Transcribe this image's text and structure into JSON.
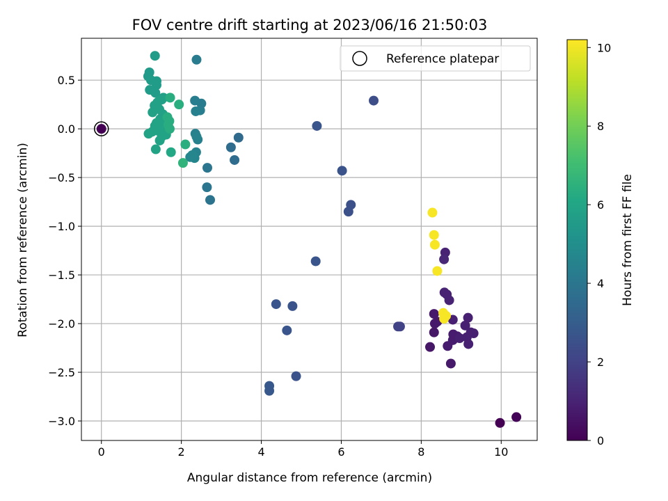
{
  "chart_data": {
    "type": "scatter",
    "title": "FOV centre drift starting at 2023/06/16 21:50:03",
    "xlabel": "Angular distance from reference (arcmin)",
    "ylabel": "Rotation from reference (arcmin)",
    "xlim": [
      -0.5,
      10.9
    ],
    "ylim": [
      -3.2,
      0.93
    ],
    "x_ticks": [
      0,
      2,
      4,
      6,
      8,
      10
    ],
    "x_tick_labels": [
      "0",
      "2",
      "4",
      "6",
      "8",
      "10"
    ],
    "y_ticks": [
      0.5,
      0.0,
      -0.5,
      -1.0,
      -1.5,
      -2.0,
      -2.5,
      -3.0
    ],
    "y_tick_labels": [
      "0.5",
      "0.0",
      "−0.5",
      "−1.0",
      "−1.5",
      "−2.0",
      "−2.5",
      "−3.0"
    ],
    "grid": true,
    "legend": {
      "position": "top-right",
      "entries": [
        "Reference platepar"
      ]
    },
    "colorbar": {
      "label": "Hours from first FF file",
      "colormap": "viridis",
      "range": [
        0,
        10.2
      ],
      "ticks": [
        0,
        2,
        4,
        6,
        8,
        10
      ],
      "tick_labels": [
        "0",
        "2",
        "4",
        "6",
        "8",
        "10"
      ]
    },
    "reference_point": {
      "x": 0,
      "y": 0,
      "c": 0
    },
    "points": [
      {
        "x": 9.97,
        "y": -3.02,
        "c": 0.0
      },
      {
        "x": 10.38,
        "y": -2.96,
        "c": 0.1
      },
      {
        "x": 8.22,
        "y": -2.24,
        "c": 0.6
      },
      {
        "x": 8.32,
        "y": -2.09,
        "c": 0.6
      },
      {
        "x": 8.34,
        "y": -2.0,
        "c": 0.7
      },
      {
        "x": 8.32,
        "y": -1.9,
        "c": 0.7
      },
      {
        "x": 8.4,
        "y": -1.98,
        "c": 0.7
      },
      {
        "x": 8.66,
        "y": -2.23,
        "c": 0.8
      },
      {
        "x": 8.74,
        "y": -2.41,
        "c": 0.7
      },
      {
        "x": 8.79,
        "y": -2.17,
        "c": 0.8
      },
      {
        "x": 8.8,
        "y": -2.11,
        "c": 0.8
      },
      {
        "x": 8.84,
        "y": -2.14,
        "c": 0.8
      },
      {
        "x": 8.9,
        "y": -2.13,
        "c": 0.8
      },
      {
        "x": 8.96,
        "y": -2.15,
        "c": 0.9
      },
      {
        "x": 8.79,
        "y": -1.96,
        "c": 0.9
      },
      {
        "x": 9.1,
        "y": -2.02,
        "c": 0.9
      },
      {
        "x": 9.17,
        "y": -1.94,
        "c": 0.9
      },
      {
        "x": 9.18,
        "y": -2.21,
        "c": 0.9
      },
      {
        "x": 9.24,
        "y": -2.09,
        "c": 0.9
      },
      {
        "x": 9.31,
        "y": -2.1,
        "c": 0.9
      },
      {
        "x": 9.14,
        "y": -2.14,
        "c": 0.9
      },
      {
        "x": 8.64,
        "y": -1.7,
        "c": 1.0
      },
      {
        "x": 8.58,
        "y": -1.68,
        "c": 1.0
      },
      {
        "x": 8.7,
        "y": -1.76,
        "c": 1.0
      },
      {
        "x": 8.6,
        "y": -1.27,
        "c": 1.0
      },
      {
        "x": 8.57,
        "y": -1.34,
        "c": 1.1
      },
      {
        "x": 7.42,
        "y": -2.03,
        "c": 2.0
      },
      {
        "x": 7.47,
        "y": -2.03,
        "c": 2.0
      },
      {
        "x": 6.81,
        "y": 0.29,
        "c": 2.4
      },
      {
        "x": 6.24,
        "y": -0.78,
        "c": 2.5
      },
      {
        "x": 6.18,
        "y": -0.85,
        "c": 2.5
      },
      {
        "x": 6.02,
        "y": -0.43,
        "c": 2.6
      },
      {
        "x": 5.39,
        "y": 0.03,
        "c": 2.7
      },
      {
        "x": 5.36,
        "y": -1.36,
        "c": 2.7
      },
      {
        "x": 4.87,
        "y": -2.54,
        "c": 2.6
      },
      {
        "x": 4.78,
        "y": -1.82,
        "c": 2.6
      },
      {
        "x": 4.37,
        "y": -1.8,
        "c": 2.7
      },
      {
        "x": 4.64,
        "y": -2.07,
        "c": 2.7
      },
      {
        "x": 4.2,
        "y": -2.64,
        "c": 2.8
      },
      {
        "x": 4.2,
        "y": -2.69,
        "c": 2.8
      },
      {
        "x": 3.43,
        "y": -0.09,
        "c": 3.5
      },
      {
        "x": 3.24,
        "y": -0.19,
        "c": 3.6
      },
      {
        "x": 3.33,
        "y": -0.32,
        "c": 3.6
      },
      {
        "x": 2.72,
        "y": -0.73,
        "c": 3.9
      },
      {
        "x": 2.65,
        "y": -0.4,
        "c": 4.0
      },
      {
        "x": 2.64,
        "y": -0.6,
        "c": 4.0
      },
      {
        "x": 2.38,
        "y": 0.71,
        "c": 4.2
      },
      {
        "x": 2.5,
        "y": 0.26,
        "c": 4.2
      },
      {
        "x": 2.47,
        "y": 0.19,
        "c": 4.3
      },
      {
        "x": 2.34,
        "y": 0.29,
        "c": 4.3
      },
      {
        "x": 2.36,
        "y": 0.18,
        "c": 4.4
      },
      {
        "x": 2.41,
        "y": -0.11,
        "c": 4.4
      },
      {
        "x": 2.35,
        "y": -0.05,
        "c": 4.4
      },
      {
        "x": 2.38,
        "y": -0.08,
        "c": 4.5
      },
      {
        "x": 2.37,
        "y": -0.24,
        "c": 4.5
      },
      {
        "x": 2.33,
        "y": -0.3,
        "c": 4.6
      },
      {
        "x": 2.22,
        "y": -0.29,
        "c": 4.7
      },
      {
        "x": 2.27,
        "y": -0.27,
        "c": 4.7
      },
      {
        "x": 1.34,
        "y": 0.75,
        "c": 5.6
      },
      {
        "x": 1.2,
        "y": 0.58,
        "c": 5.5
      },
      {
        "x": 1.17,
        "y": 0.54,
        "c": 5.5
      },
      {
        "x": 1.24,
        "y": 0.5,
        "c": 5.6
      },
      {
        "x": 1.38,
        "y": 0.49,
        "c": 5.6
      },
      {
        "x": 1.38,
        "y": 0.45,
        "c": 5.6
      },
      {
        "x": 1.21,
        "y": 0.4,
        "c": 5.6
      },
      {
        "x": 1.35,
        "y": 0.37,
        "c": 5.6
      },
      {
        "x": 1.55,
        "y": 0.32,
        "c": 5.7
      },
      {
        "x": 1.51,
        "y": 0.3,
        "c": 5.8
      },
      {
        "x": 1.45,
        "y": 0.29,
        "c": 5.8
      },
      {
        "x": 1.4,
        "y": 0.27,
        "c": 5.8
      },
      {
        "x": 1.33,
        "y": 0.24,
        "c": 5.8
      },
      {
        "x": 1.45,
        "y": 0.2,
        "c": 5.8
      },
      {
        "x": 1.28,
        "y": 0.17,
        "c": 5.8
      },
      {
        "x": 1.54,
        "y": 0.15,
        "c": 5.8
      },
      {
        "x": 1.47,
        "y": 0.1,
        "c": 5.8
      },
      {
        "x": 1.6,
        "y": 0.08,
        "c": 5.9
      },
      {
        "x": 1.38,
        "y": 0.06,
        "c": 5.9
      },
      {
        "x": 1.5,
        "y": 0.04,
        "c": 5.9
      },
      {
        "x": 1.34,
        "y": 0.03,
        "c": 5.9
      },
      {
        "x": 1.6,
        "y": 0.01,
        "c": 5.9
      },
      {
        "x": 1.48,
        "y": 0.0,
        "c": 5.9
      },
      {
        "x": 1.42,
        "y": -0.02,
        "c": 5.9
      },
      {
        "x": 1.27,
        "y": -0.03,
        "c": 5.9
      },
      {
        "x": 1.18,
        "y": -0.05,
        "c": 5.9
      },
      {
        "x": 1.62,
        "y": -0.06,
        "c": 5.9
      },
      {
        "x": 1.51,
        "y": -0.08,
        "c": 5.9
      },
      {
        "x": 1.46,
        "y": -0.12,
        "c": 5.9
      },
      {
        "x": 1.36,
        "y": -0.21,
        "c": 5.9
      },
      {
        "x": 1.72,
        "y": 0.32,
        "c": 6.3
      },
      {
        "x": 1.94,
        "y": 0.25,
        "c": 6.4
      },
      {
        "x": 1.65,
        "y": 0.12,
        "c": 6.3
      },
      {
        "x": 1.7,
        "y": 0.08,
        "c": 6.3
      },
      {
        "x": 1.67,
        "y": 0.04,
        "c": 6.3
      },
      {
        "x": 1.71,
        "y": 0.0,
        "c": 6.3
      },
      {
        "x": 1.74,
        "y": -0.24,
        "c": 6.1
      },
      {
        "x": 2.1,
        "y": -0.16,
        "c": 6.4
      },
      {
        "x": 2.04,
        "y": -0.35,
        "c": 6.6
      },
      {
        "x": 8.28,
        "y": -0.86,
        "c": 10.1
      },
      {
        "x": 8.32,
        "y": -1.09,
        "c": 10.1
      },
      {
        "x": 8.34,
        "y": -1.19,
        "c": 10.1
      },
      {
        "x": 8.4,
        "y": -1.46,
        "c": 10.1
      },
      {
        "x": 8.55,
        "y": -1.89,
        "c": 10.1
      },
      {
        "x": 8.57,
        "y": -1.95,
        "c": 10.1
      },
      {
        "x": 8.62,
        "y": -1.92,
        "c": 10.1
      }
    ]
  }
}
